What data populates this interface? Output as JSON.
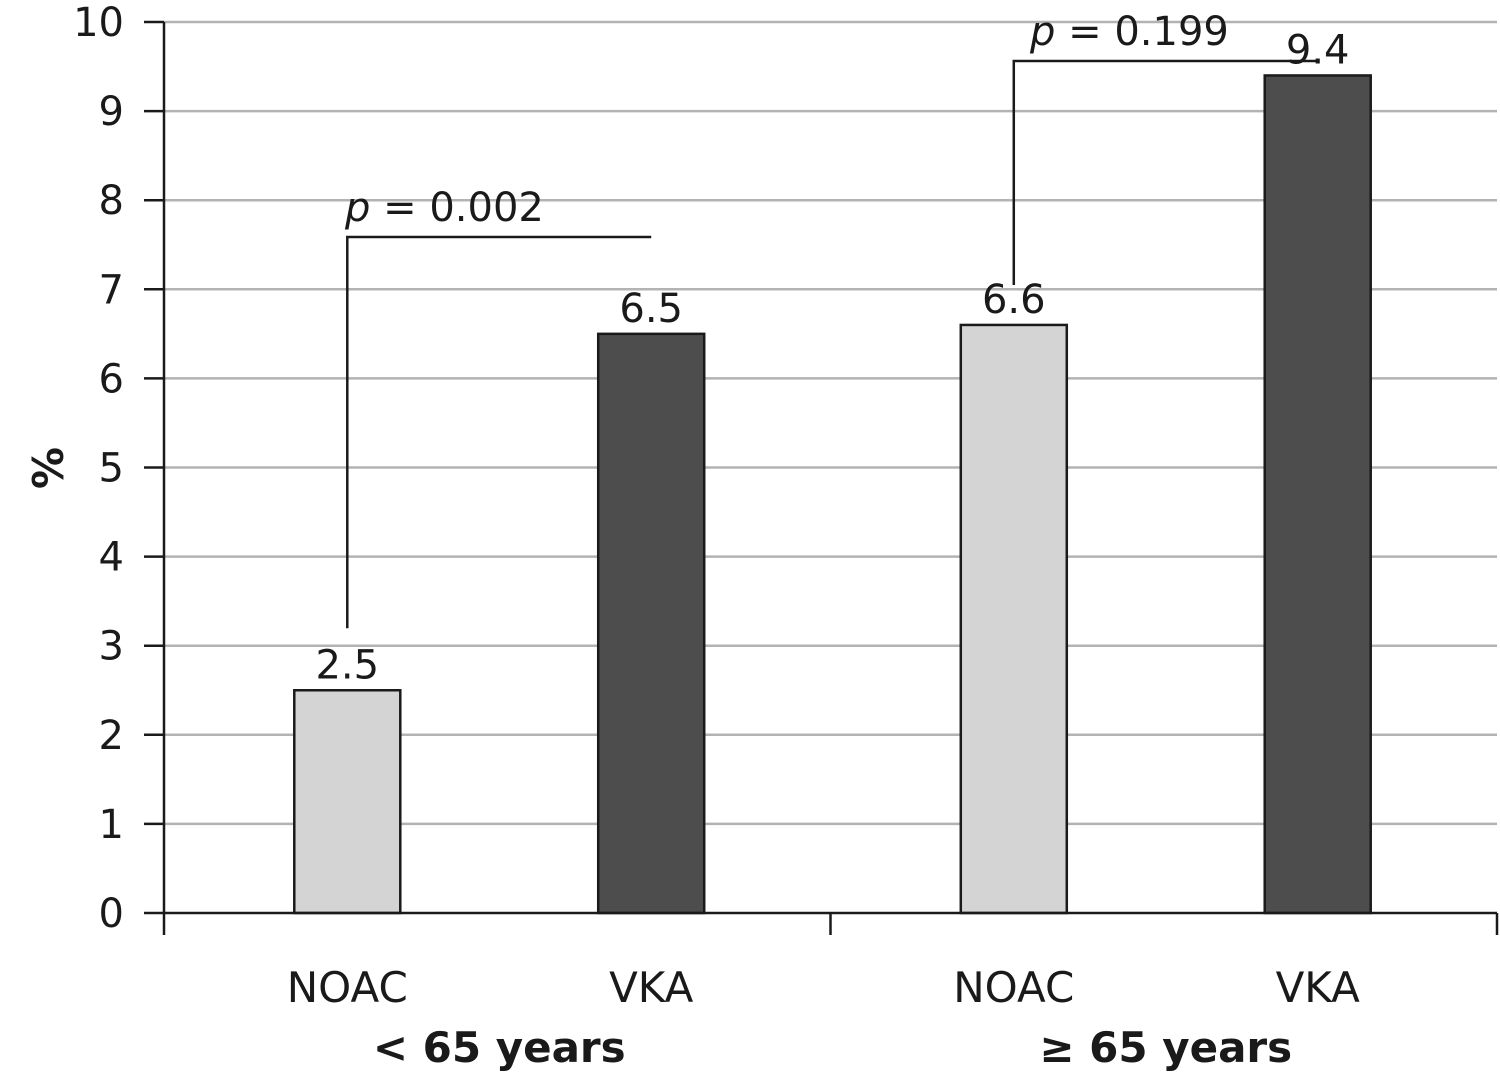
{
  "chart_data": {
    "type": "bar",
    "ylabel": "%",
    "xlabel": "",
    "ylim": [
      0,
      10
    ],
    "yticks": [
      0,
      1,
      2,
      3,
      4,
      5,
      6,
      7,
      8,
      9,
      10
    ],
    "grid": true,
    "groups": [
      {
        "label": "< 65 years",
        "bars": [
          {
            "category": "NOAC",
            "value": 2.5,
            "value_label": "2.5",
            "color": "#d4d4d4"
          },
          {
            "category": "VKA",
            "value": 6.5,
            "value_label": "6.5",
            "color": "#4d4d4d"
          }
        ],
        "p_value": {
          "italic": "p",
          "text": " = 0.002"
        }
      },
      {
        "label": "≥ 65 years",
        "bars": [
          {
            "category": "NOAC",
            "value": 6.6,
            "value_label": "6.6",
            "color": "#d4d4d4"
          },
          {
            "category": "VKA",
            "value": 9.4,
            "value_label": "9.4",
            "color": "#4d4d4d"
          }
        ],
        "p_value": {
          "italic": "p",
          "text": " = 0.199"
        }
      }
    ],
    "colors": {
      "noac": "#d4d4d4",
      "vka": "#4d4d4d",
      "gridline": "#b3b3b3",
      "axis": "#1a1a1a"
    }
  }
}
